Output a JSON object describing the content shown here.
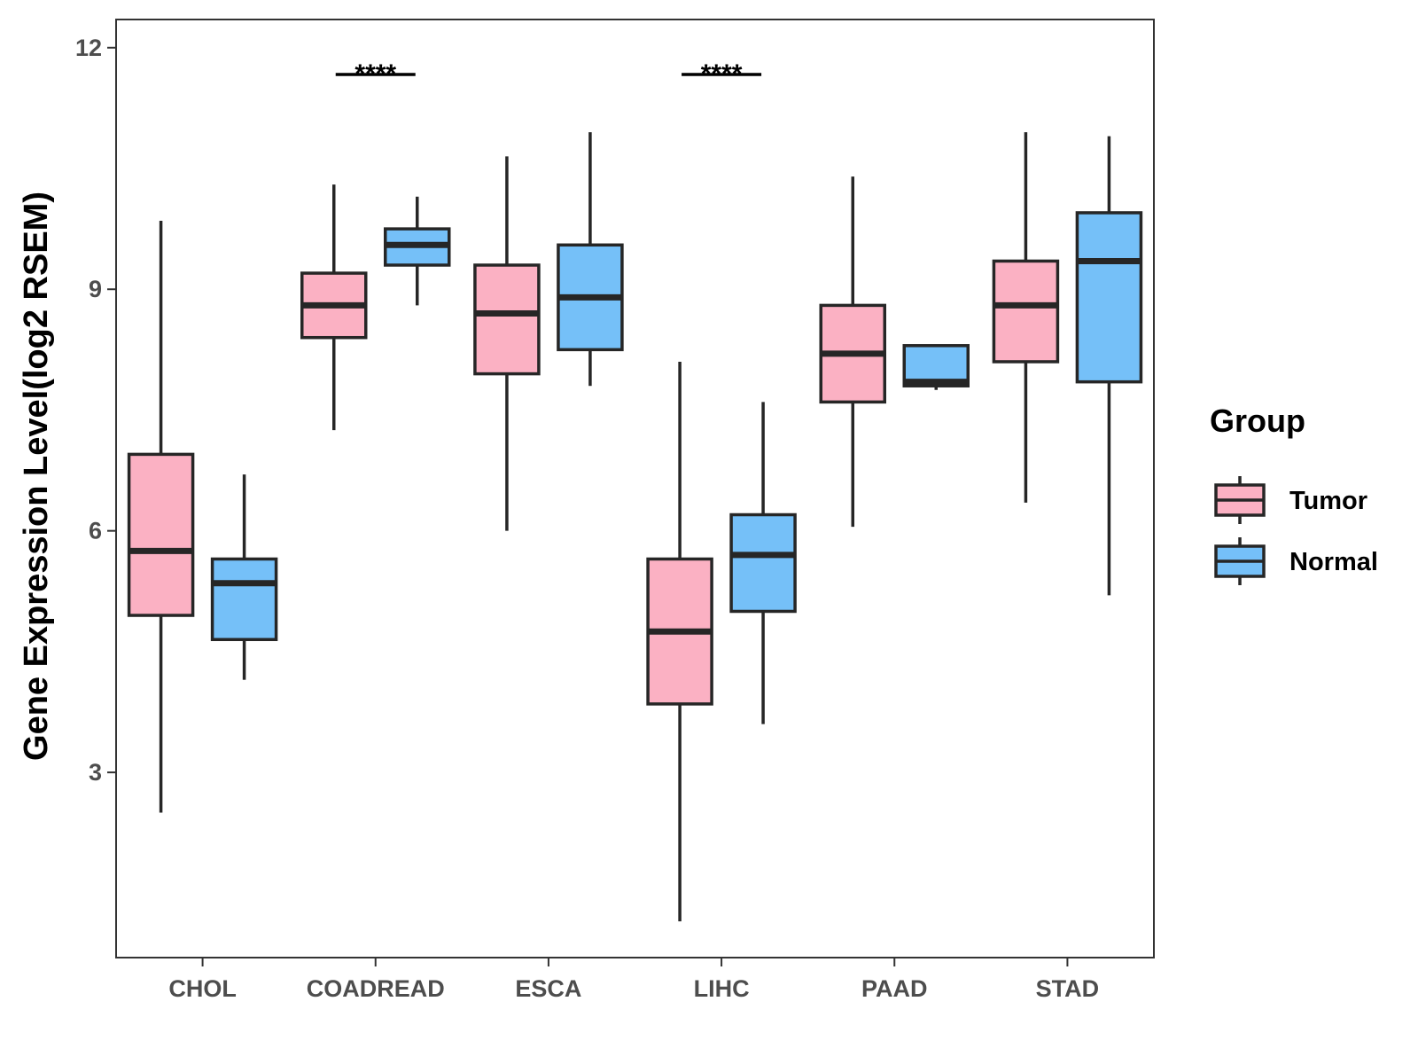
{
  "chart_data": {
    "type": "boxplot",
    "xlabel": "",
    "ylabel": "Gene Expression Level(log2 RSEM)",
    "ylim": [
      0.7,
      12.35
    ],
    "yticks": [
      3,
      6,
      9,
      12
    ],
    "grid": false,
    "categories": [
      "CHOL",
      "COADREAD",
      "ESCA",
      "LIHC",
      "PAAD",
      "STAD"
    ],
    "legend": {
      "title": "Group",
      "position": "right"
    },
    "series": [
      {
        "name": "Tumor",
        "color": "#FBB1C3",
        "boxes": [
          {
            "min": 2.5,
            "q1": 4.95,
            "median": 5.75,
            "q3": 6.95,
            "max": 9.85
          },
          {
            "min": 7.25,
            "q1": 8.4,
            "median": 8.8,
            "q3": 9.2,
            "max": 10.3
          },
          {
            "min": 6.0,
            "q1": 7.95,
            "median": 8.7,
            "q3": 9.3,
            "max": 10.65
          },
          {
            "min": 1.15,
            "q1": 3.85,
            "median": 4.75,
            "q3": 5.65,
            "max": 8.1
          },
          {
            "min": 6.05,
            "q1": 7.6,
            "median": 8.2,
            "q3": 8.8,
            "max": 10.4
          },
          {
            "min": 6.35,
            "q1": 8.1,
            "median": 8.8,
            "q3": 9.35,
            "max": 10.95
          }
        ]
      },
      {
        "name": "Normal",
        "color": "#75C0F8",
        "boxes": [
          {
            "min": 4.15,
            "q1": 4.65,
            "median": 5.35,
            "q3": 5.65,
            "max": 6.7
          },
          {
            "min": 8.8,
            "q1": 9.3,
            "median": 9.55,
            "q3": 9.75,
            "max": 10.15
          },
          {
            "min": 7.8,
            "q1": 8.25,
            "median": 8.9,
            "q3": 9.55,
            "max": 10.95
          },
          {
            "min": 3.6,
            "q1": 5.0,
            "median": 5.7,
            "q3": 6.2,
            "max": 7.6
          },
          {
            "min": 7.75,
            "q1": 7.8,
            "median": 7.85,
            "q3": 8.3,
            "max": 8.3
          },
          {
            "min": 5.2,
            "q1": 7.85,
            "median": 9.35,
            "q3": 9.95,
            "max": 10.9
          }
        ]
      }
    ],
    "annotations": [
      {
        "category": "COADREAD",
        "text": "****",
        "y": 11.7
      },
      {
        "category": "LIHC",
        "text": "****",
        "y": 11.7
      }
    ]
  },
  "colors": {
    "outline": "#262626",
    "axis": "#333333",
    "tick_text": "#4d4d4d"
  }
}
